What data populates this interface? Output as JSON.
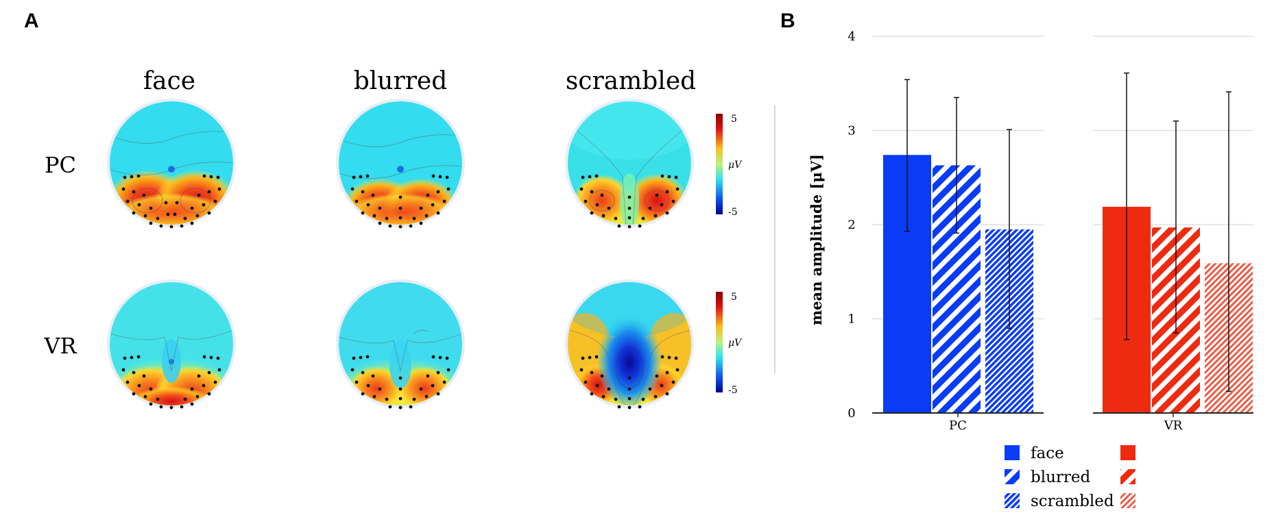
{
  "panel_a": {
    "label": "A",
    "columns": [
      "face",
      "blurred",
      "scrambled"
    ],
    "rows": [
      "PC",
      "VR"
    ],
    "colorbar": {
      "max_label": "5",
      "min_label": "-5",
      "unit": "μV"
    }
  },
  "panel_b": {
    "label": "B"
  },
  "colors": {
    "pc": "#0a3cf5",
    "vr": "#ee2a10",
    "grid": "#d9d9d9",
    "axis": "#222222"
  },
  "chart_data": {
    "type": "bar",
    "title": "",
    "xlabel": "",
    "ylabel": "mean amplitude [μV]",
    "ylim": [
      0,
      4
    ],
    "yticks": [
      "0",
      "1",
      "2",
      "3",
      "4"
    ],
    "categories": [
      "PC",
      "VR"
    ],
    "series": [
      {
        "name": "face",
        "pattern": "solid",
        "values": [
          2.74,
          2.19
        ],
        "err_low": [
          1.93,
          0.78
        ],
        "err_high": [
          3.54,
          3.61
        ]
      },
      {
        "name": "blurred",
        "pattern": "wide-hatch",
        "values": [
          2.63,
          1.97
        ],
        "err_low": [
          1.91,
          0.85
        ],
        "err_high": [
          3.35,
          3.1
        ]
      },
      {
        "name": "scrambled",
        "pattern": "fine-hatch",
        "values": [
          1.95,
          1.59
        ],
        "err_low": [
          0.9,
          0.23
        ],
        "err_high": [
          3.01,
          3.41
        ]
      }
    ],
    "legend": {
      "position": "bottom",
      "entries": [
        "face",
        "blurred",
        "scrambled"
      ]
    }
  }
}
